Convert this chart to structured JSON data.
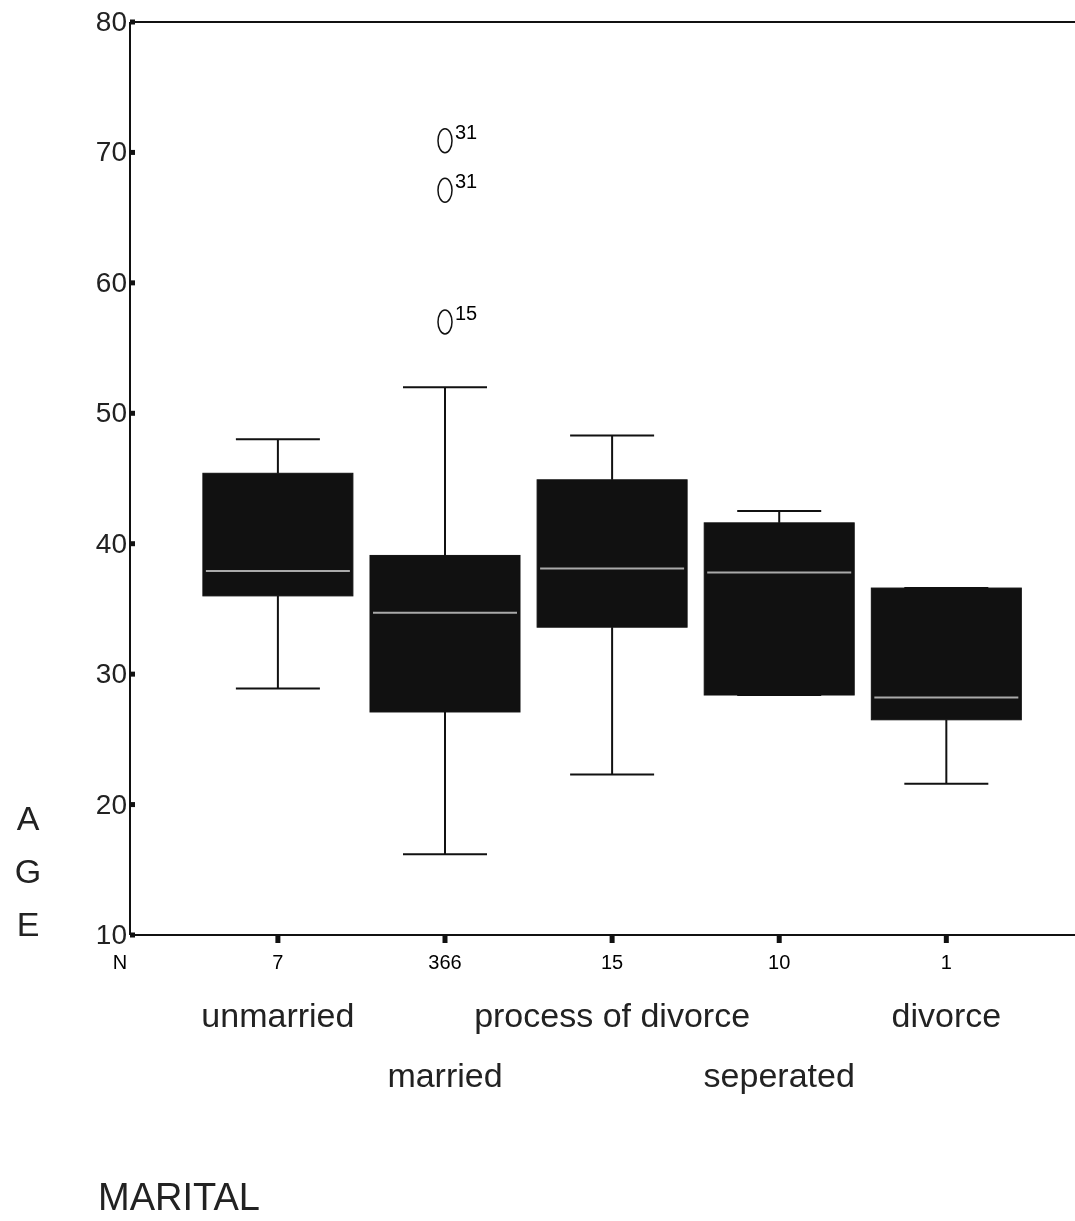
{
  "chart_data": {
    "type": "box",
    "xlabel": "MARITAL",
    "ylabel": "AGE",
    "categories": [
      "unmarried",
      "married",
      "process of divorce",
      "seperated",
      "divorce"
    ],
    "boxes": [
      {
        "low": 28.9,
        "q1": 36.0,
        "median": 37.9,
        "q3": 45.4,
        "high": 48.0
      },
      {
        "low": 16.2,
        "q1": 27.1,
        "median": 34.7,
        "q3": 39.1,
        "high": 52.0,
        "outliers": [
          70.9,
          67.1,
          57.0
        ]
      },
      {
        "low": 22.3,
        "q1": 33.6,
        "median": 38.1,
        "q3": 44.9,
        "high": 48.3
      },
      {
        "low": 28.4,
        "q1": 28.4,
        "median": 37.8,
        "q3": 41.6,
        "high": 42.5
      },
      {
        "low": 21.6,
        "q1": 26.5,
        "median": 28.2,
        "q3": 36.6,
        "high": 36.6
      }
    ],
    "color": "#111111",
    "ylim": [
      10,
      80
    ],
    "yticks": [
      10,
      20,
      30,
      40,
      50,
      60,
      70,
      80
    ],
    "annotations": [
      "N",
      "7",
      "366",
      "15",
      "10",
      "1",
      "31",
      "31",
      "15"
    ]
  }
}
